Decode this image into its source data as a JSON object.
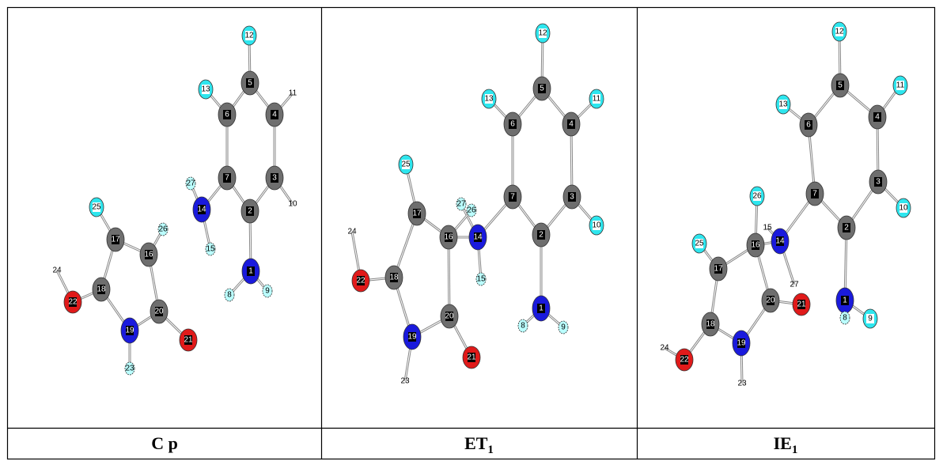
{
  "panels": [
    {
      "caption": {
        "main": "C p"
      },
      "atoms": [
        1,
        2,
        3,
        4,
        5,
        6,
        7,
        8,
        9,
        10,
        11,
        12,
        13,
        14,
        15,
        16,
        17,
        18,
        19,
        20,
        21,
        22,
        23,
        24,
        25,
        26,
        27
      ]
    },
    {
      "caption": {
        "main": "ET",
        "sub": "1"
      },
      "atoms": [
        1,
        2,
        3,
        4,
        5,
        6,
        7,
        8,
        9,
        10,
        11,
        12,
        13,
        14,
        15,
        16,
        17,
        18,
        19,
        20,
        21,
        22,
        23,
        24,
        25,
        26,
        27
      ]
    },
    {
      "caption": {
        "main": "IE",
        "sub": "1"
      },
      "atoms": [
        1,
        2,
        3,
        4,
        5,
        6,
        7,
        8,
        9,
        10,
        11,
        12,
        13,
        14,
        15,
        16,
        17,
        18,
        19,
        20,
        21,
        22,
        23,
        24,
        25,
        26,
        27
      ]
    }
  ]
}
